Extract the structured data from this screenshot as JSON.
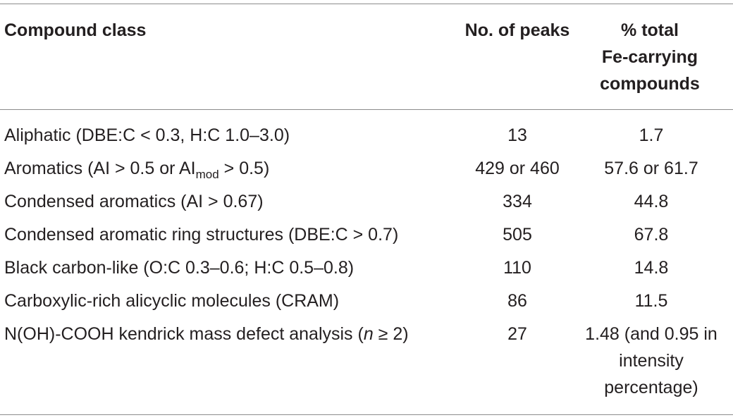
{
  "table": {
    "headers": {
      "compound_class": "Compound class",
      "no_of_peaks": "No. of peaks",
      "pct_total": [
        "% total",
        "Fe-carrying",
        "compounds"
      ]
    },
    "rows": [
      {
        "compound_class": "Aliphatic (DBE:C < 0.3, H:C 1.0–3.0)",
        "peaks": "13",
        "pct": [
          "1.7"
        ]
      },
      {
        "compound_class_pre": "Aromatics (AI > 0.5 or AI",
        "compound_class_sub": "mod",
        "compound_class_post": " > 0.5)",
        "peaks": "429 or 460",
        "pct": [
          "57.6 or 61.7"
        ]
      },
      {
        "compound_class": "Condensed aromatics (AI > 0.67)",
        "peaks": "334",
        "pct": [
          "44.8"
        ]
      },
      {
        "compound_class": "Condensed aromatic ring structures (DBE:C > 0.7)",
        "peaks": "505",
        "pct": [
          "67.8"
        ]
      },
      {
        "compound_class": "Black carbon-like (O:C 0.3–0.6; H:C 0.5–0.8)",
        "peaks": "110",
        "pct": [
          "14.8"
        ]
      },
      {
        "compound_class": "Carboxylic-rich alicyclic molecules (CRAM)",
        "peaks": "86",
        "pct": [
          "11.5"
        ]
      },
      {
        "compound_class_pre": "N(OH)-COOH kendrick mass defect analysis (",
        "compound_class_italic": "n",
        "compound_class_post": " ≥ 2)",
        "peaks": "27",
        "pct": [
          "1.48 (and 0.95 in",
          "intensity",
          "percentage)"
        ]
      }
    ]
  }
}
